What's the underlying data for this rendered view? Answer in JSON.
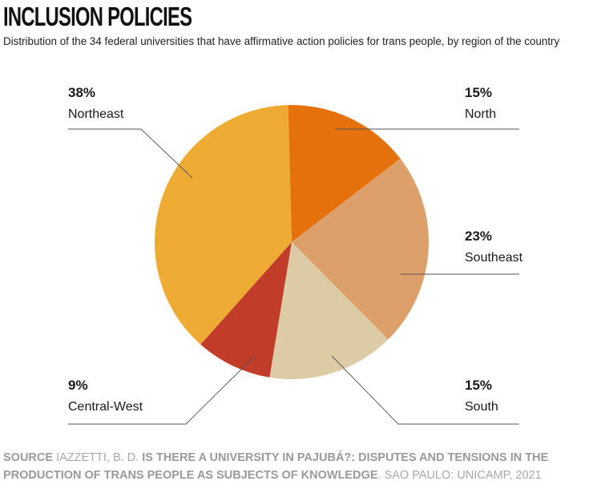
{
  "title": "INCLUSION POLICIES",
  "subtitle": "Distribution of the 34 federal universities that have affirmative action policies for trans people, by region of the country",
  "source": {
    "label": "SOURCE",
    "author": "IAZZETTI, B. D.",
    "work": "IS THERE A UNIVERSITY IN PAJUBÁ?: DISPUTES AND TENSIONS IN THE PRODUCTION OF TRANS PEOPLE AS SUBJECTS OF KNOWLEDGE",
    "publisher": ". SAO PAULO: UNICAMP, 2021"
  },
  "chart_data": {
    "type": "pie",
    "slices": [
      {
        "name": "North",
        "value": 15,
        "label": "15%",
        "color": "#e5710d"
      },
      {
        "name": "Southeast",
        "value": 23,
        "label": "23%",
        "color": "#dea06a"
      },
      {
        "name": "South",
        "value": 15,
        "label": "15%",
        "color": "#dccba5"
      },
      {
        "name": "Central-West",
        "value": 9,
        "label": "9%",
        "color": "#c23c2a"
      },
      {
        "name": "Northeast",
        "value": 38,
        "label": "38%",
        "color": "#eeab33"
      }
    ]
  }
}
